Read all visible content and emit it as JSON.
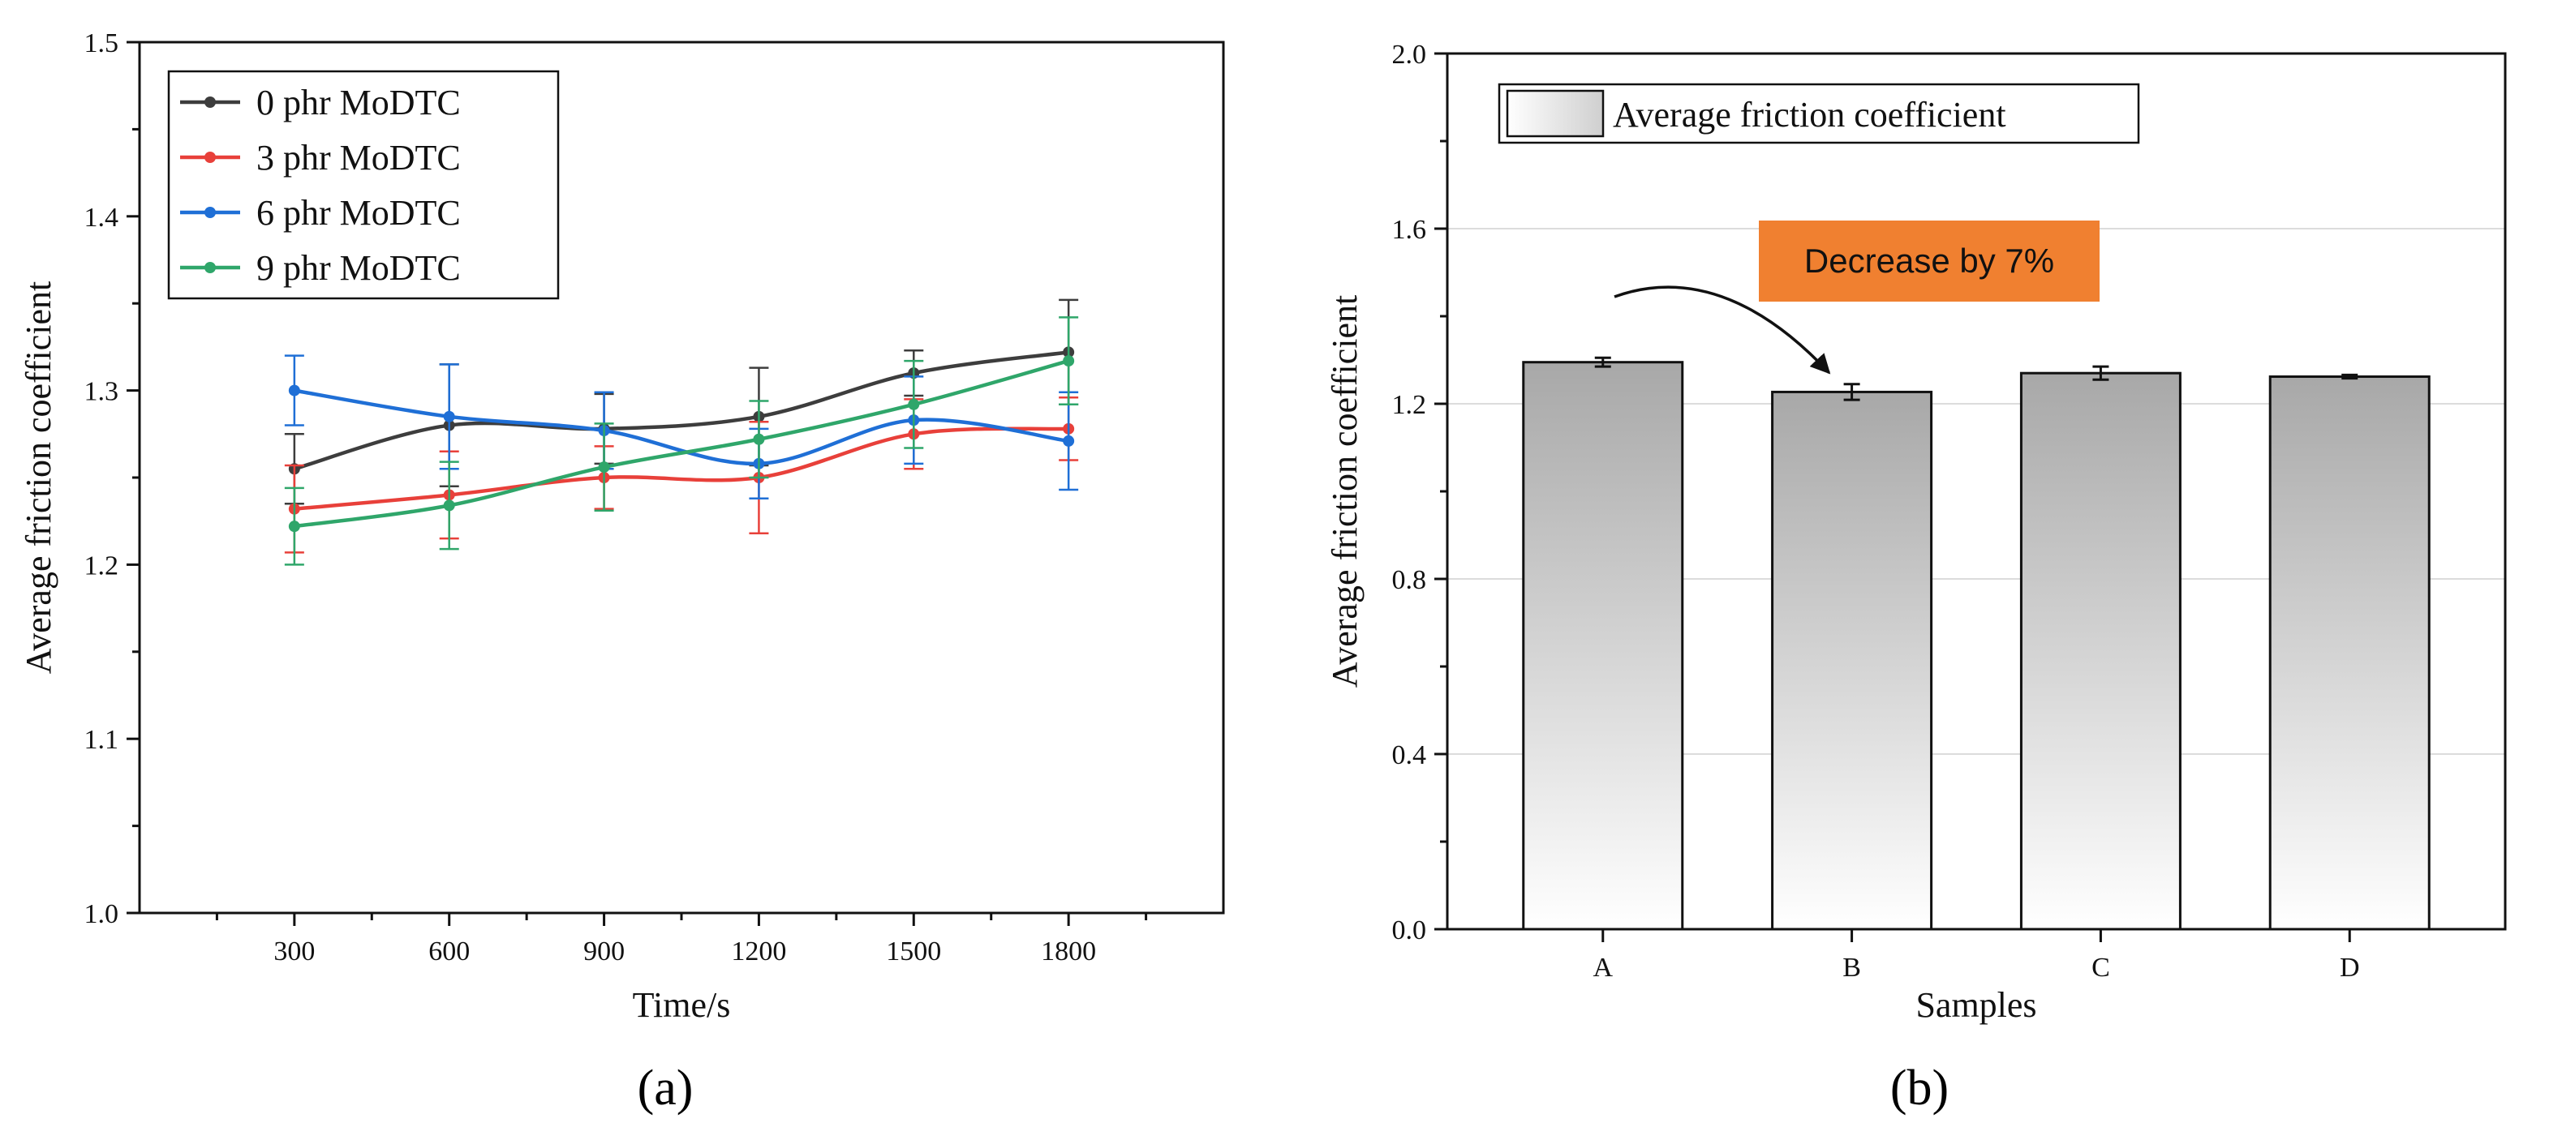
{
  "chart_data": [
    {
      "panel": "a",
      "type": "line",
      "xlabel": "Time/s",
      "ylabel": "Average friction coefficient",
      "xlim": [
        0,
        2100
      ],
      "ylim": [
        1.0,
        1.5
      ],
      "x": [
        300,
        600,
        900,
        1200,
        1500,
        1800
      ],
      "xticks": [
        "300",
        "600",
        "900",
        "1200",
        "1500",
        "1800"
      ],
      "yticks": [
        "1.0",
        "1.1",
        "1.2",
        "1.3",
        "1.4",
        "1.5"
      ],
      "legend_position": "top-left",
      "series": [
        {
          "name": "0 phr MoDTC",
          "color": "#3d3d3d",
          "values": [
            1.255,
            1.28,
            1.278,
            1.285,
            1.31,
            1.322
          ],
          "errors": [
            0.02,
            0.035,
            0.02,
            0.028,
            0.013,
            0.03
          ]
        },
        {
          "name": "3 phr MoDTC",
          "color": "#e8403a",
          "values": [
            1.232,
            1.24,
            1.25,
            1.25,
            1.275,
            1.278
          ],
          "errors": [
            0.025,
            0.025,
            0.018,
            0.032,
            0.02,
            0.018
          ]
        },
        {
          "name": "6 phr MoDTC",
          "color": "#1f6fd6",
          "values": [
            1.3,
            1.285,
            1.277,
            1.258,
            1.283,
            1.271
          ],
          "errors": [
            0.02,
            0.03,
            0.022,
            0.02,
            0.025,
            0.028
          ]
        },
        {
          "name": "9 phr MoDTC",
          "color": "#2fa66a",
          "values": [
            1.222,
            1.234,
            1.256,
            1.272,
            1.292,
            1.317
          ],
          "errors": [
            0.022,
            0.025,
            0.025,
            0.022,
            0.025,
            0.025
          ]
        }
      ]
    },
    {
      "panel": "b",
      "type": "bar",
      "xlabel": "Samples",
      "ylabel": "Average friction coefficient",
      "ylim": [
        0.0,
        2.0
      ],
      "yticks": [
        "0.0",
        "0.4",
        "0.8",
        "1.2",
        "1.6",
        "2.0"
      ],
      "categories": [
        "A",
        "B",
        "C",
        "D"
      ],
      "series": [
        {
          "name": "Average friction coefficient",
          "values": [
            1.295,
            1.227,
            1.27,
            1.262
          ],
          "errors": [
            0.01,
            0.018,
            0.015,
            0.004
          ]
        }
      ],
      "grid": true,
      "legend_position": "top-left",
      "annotation": {
        "text": "Decrease by 7%",
        "color": "#f08030",
        "target": "B"
      }
    }
  ],
  "panel_labels": {
    "a": "(a)",
    "b": "(b)"
  }
}
